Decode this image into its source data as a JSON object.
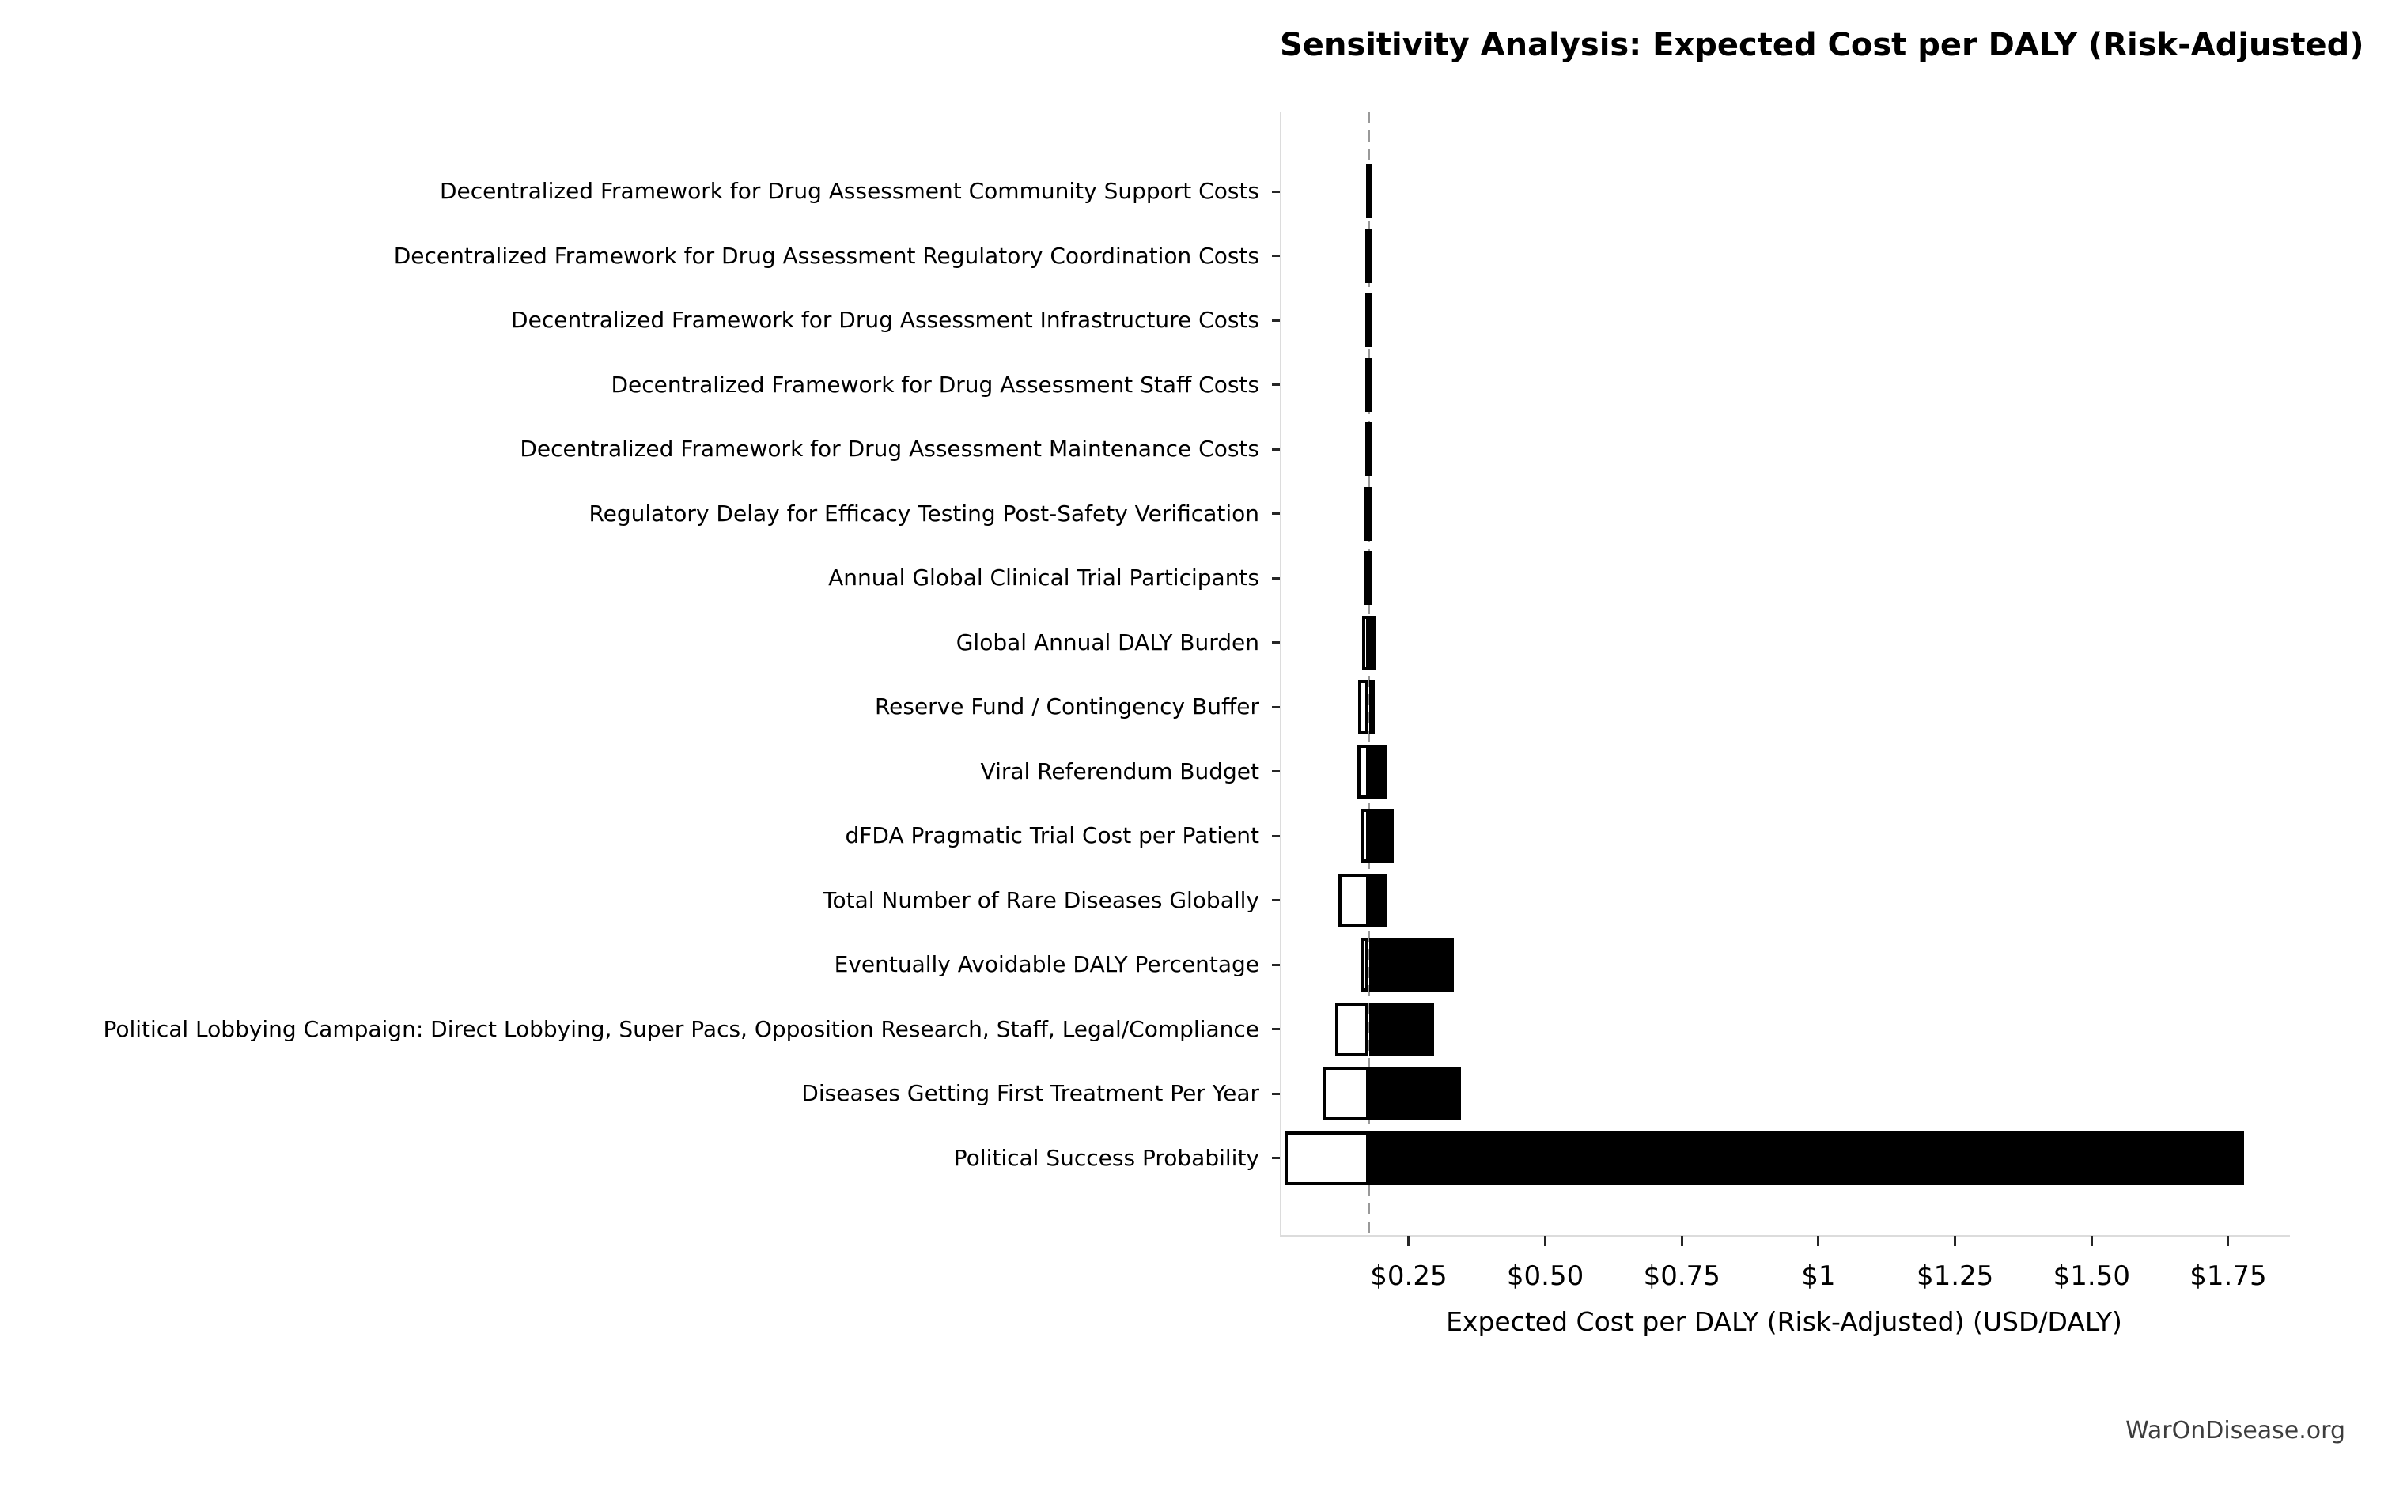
{
  "chart": {
    "title": "Sensitivity Analysis: Expected Cost per DALY (Risk-Adjusted)",
    "xlabel": "Expected Cost per DALY (Risk-Adjusted) (USD/DALY)",
    "watermark": "WarOnDisease.org"
  },
  "chart_data": {
    "type": "bar",
    "subtype": "tornado-sensitivity",
    "orientation": "horizontal",
    "title": "Sensitivity Analysis: Expected Cost per DALY (Risk-Adjusted)",
    "xlabel": "Expected Cost per DALY (Risk-Adjusted) (USD/DALY)",
    "ylabel": "",
    "grid": false,
    "legend": null,
    "baseline_value": 0.177,
    "xlim": [
      0.017,
      1.863
    ],
    "x_ticks": [
      {
        "value": 0.25,
        "label": "$0.25"
      },
      {
        "value": 0.5,
        "label": "$0.50"
      },
      {
        "value": 0.75,
        "label": "$0.75"
      },
      {
        "value": 1.0,
        "label": "$1"
      },
      {
        "value": 1.25,
        "label": "$1.25"
      },
      {
        "value": 1.5,
        "label": "$1.50"
      },
      {
        "value": 1.75,
        "label": "$1.75"
      }
    ],
    "bar_style": {
      "low_fill": "#ffffff",
      "high_fill": "#000000",
      "edge": "#000000"
    },
    "parameters": [
      {
        "label": "Decentralized Framework for Drug Assessment Community Support Costs",
        "low": 0.172,
        "high": 0.181
      },
      {
        "label": "Decentralized Framework for Drug Assessment Regulatory Coordination Costs",
        "low": 0.171,
        "high": 0.182
      },
      {
        "label": "Decentralized Framework for Drug Assessment Infrastructure Costs",
        "low": 0.171,
        "high": 0.182
      },
      {
        "label": "Decentralized Framework for Drug Assessment Staff Costs",
        "low": 0.171,
        "high": 0.182
      },
      {
        "label": "Decentralized Framework for Drug Assessment Maintenance Costs",
        "low": 0.17,
        "high": 0.182
      },
      {
        "label": "Regulatory Delay for Efficacy Testing Post-Safety Verification",
        "low": 0.169,
        "high": 0.183
      },
      {
        "label": "Annual Global Clinical Trial Participants",
        "low": 0.168,
        "high": 0.184
      },
      {
        "label": "Global Annual DALY Burden",
        "low": 0.165,
        "high": 0.19
      },
      {
        "label": "Reserve Fund / Contingency Buffer",
        "low": 0.158,
        "high": 0.188
      },
      {
        "label": "Viral Referendum Budget",
        "low": 0.156,
        "high": 0.21
      },
      {
        "label": "dFDA Pragmatic Trial Cost per Patient",
        "low": 0.162,
        "high": 0.222
      },
      {
        "label": "Total Number of Rare Diseases Globally",
        "low": 0.121,
        "high": 0.209
      },
      {
        "label": "Eventually Avoidable DALY Percentage",
        "low": 0.163,
        "high": 0.333
      },
      {
        "label": "Political Lobbying Campaign: Direct Lobbying, Super Pacs, Opposition Research, Staff, Legal/Compliance",
        "low": 0.115,
        "high": 0.296
      },
      {
        "label": "Diseases Getting First Treatment Per Year",
        "low": 0.092,
        "high": 0.346
      },
      {
        "label": "Political Success Probability",
        "low": 0.023,
        "high": 1.779
      }
    ]
  },
  "colors": {
    "spine": "#dcdcdc",
    "baseline_dash": "#999999",
    "tick": "#262626",
    "text": "#000000",
    "watermark": "#3d3d3d"
  }
}
